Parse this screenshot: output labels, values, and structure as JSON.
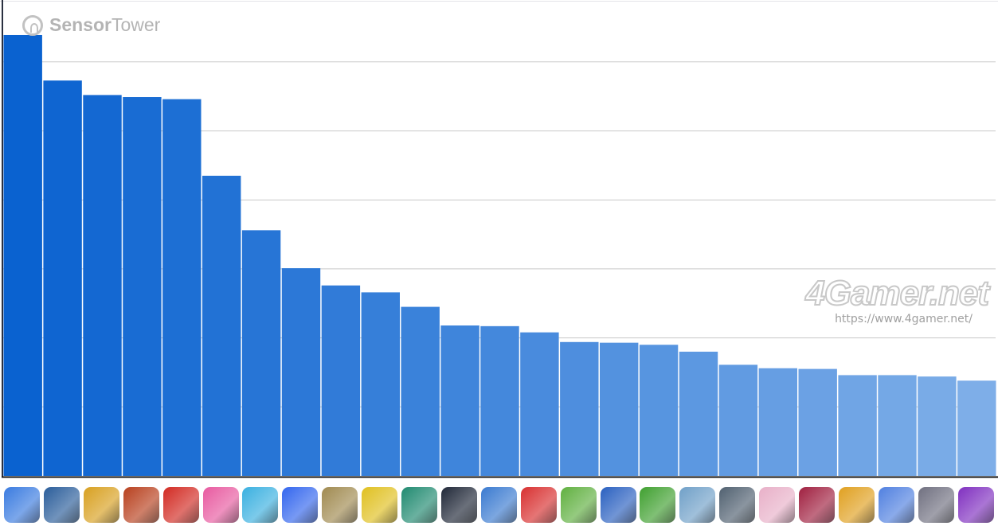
{
  "branding": {
    "logo_bold": "Sensor",
    "logo_light": "Tower"
  },
  "watermark": {
    "name": "4Gamer.net",
    "url": "https://www.4gamer.net/"
  },
  "colors": {
    "bar_start": "#0a62d0",
    "bar_end": "#7eaee8",
    "grid": "#c8c8c8",
    "axis": "#111111"
  },
  "chart_data": {
    "type": "bar",
    "title": "",
    "xlabel": "",
    "ylabel": "",
    "grid": true,
    "ylim": [
      0,
      6.9
    ],
    "y_unit": "gridline intervals (no axis labels printed)",
    "categories_shown_as": "app icons",
    "values": [
      6.39,
      5.73,
      5.52,
      5.49,
      5.46,
      4.35,
      3.56,
      3.01,
      2.76,
      2.66,
      2.45,
      2.18,
      2.17,
      2.08,
      1.94,
      1.93,
      1.9,
      1.8,
      1.61,
      1.56,
      1.55,
      1.46,
      1.46,
      1.44,
      1.38
    ],
    "icons": [
      {
        "name": "royal-match-x2-icon",
        "color": "#3a7be0"
      },
      {
        "name": "globe-game-icon",
        "color": "#2a5d9a"
      },
      {
        "name": "royal-king-icon",
        "color": "#d8a020"
      },
      {
        "name": "honor-of-kings-icon",
        "color": "#b8401e"
      },
      {
        "name": "monopoly-go-icon",
        "color": "#d22a22"
      },
      {
        "name": "candy-crush-icon",
        "color": "#e85aa0"
      },
      {
        "name": "coin-master-icon",
        "color": "#3ab0e0"
      },
      {
        "name": "roblox-icon",
        "color": "#3366ee"
      },
      {
        "name": "pubg-mobile-icon",
        "color": "#a08a50"
      },
      {
        "name": "pokemon-tcg-icon",
        "color": "#e0c020"
      },
      {
        "name": "gardenscapes-icon",
        "color": "#208a70"
      },
      {
        "name": "dragon-game-icon",
        "color": "#202838"
      },
      {
        "name": "clash-royale-icon",
        "color": "#3a7ad0"
      },
      {
        "name": "pokemon-go-icon",
        "color": "#d83030"
      },
      {
        "name": "township-icon",
        "color": "#60b040"
      },
      {
        "name": "royal-kingdom-icon",
        "color": "#2a60c0"
      },
      {
        "name": "golf-game-icon",
        "color": "#40a030"
      },
      {
        "name": "pubg-battlegrounds-icon",
        "color": "#70a0c8"
      },
      {
        "name": "call-of-duty-icon",
        "color": "#506070"
      },
      {
        "name": "honkai-star-rail-icon",
        "color": "#e8b0c8"
      },
      {
        "name": "squad-game-icon",
        "color": "#a02040"
      },
      {
        "name": "clash-of-clans-icon",
        "color": "#e0a020"
      },
      {
        "name": "pet-game-icon",
        "color": "#5080e0"
      },
      {
        "name": "love-game-icon",
        "color": "#707080"
      },
      {
        "name": "brawl-stars-icon",
        "color": "#8030c0"
      }
    ]
  }
}
